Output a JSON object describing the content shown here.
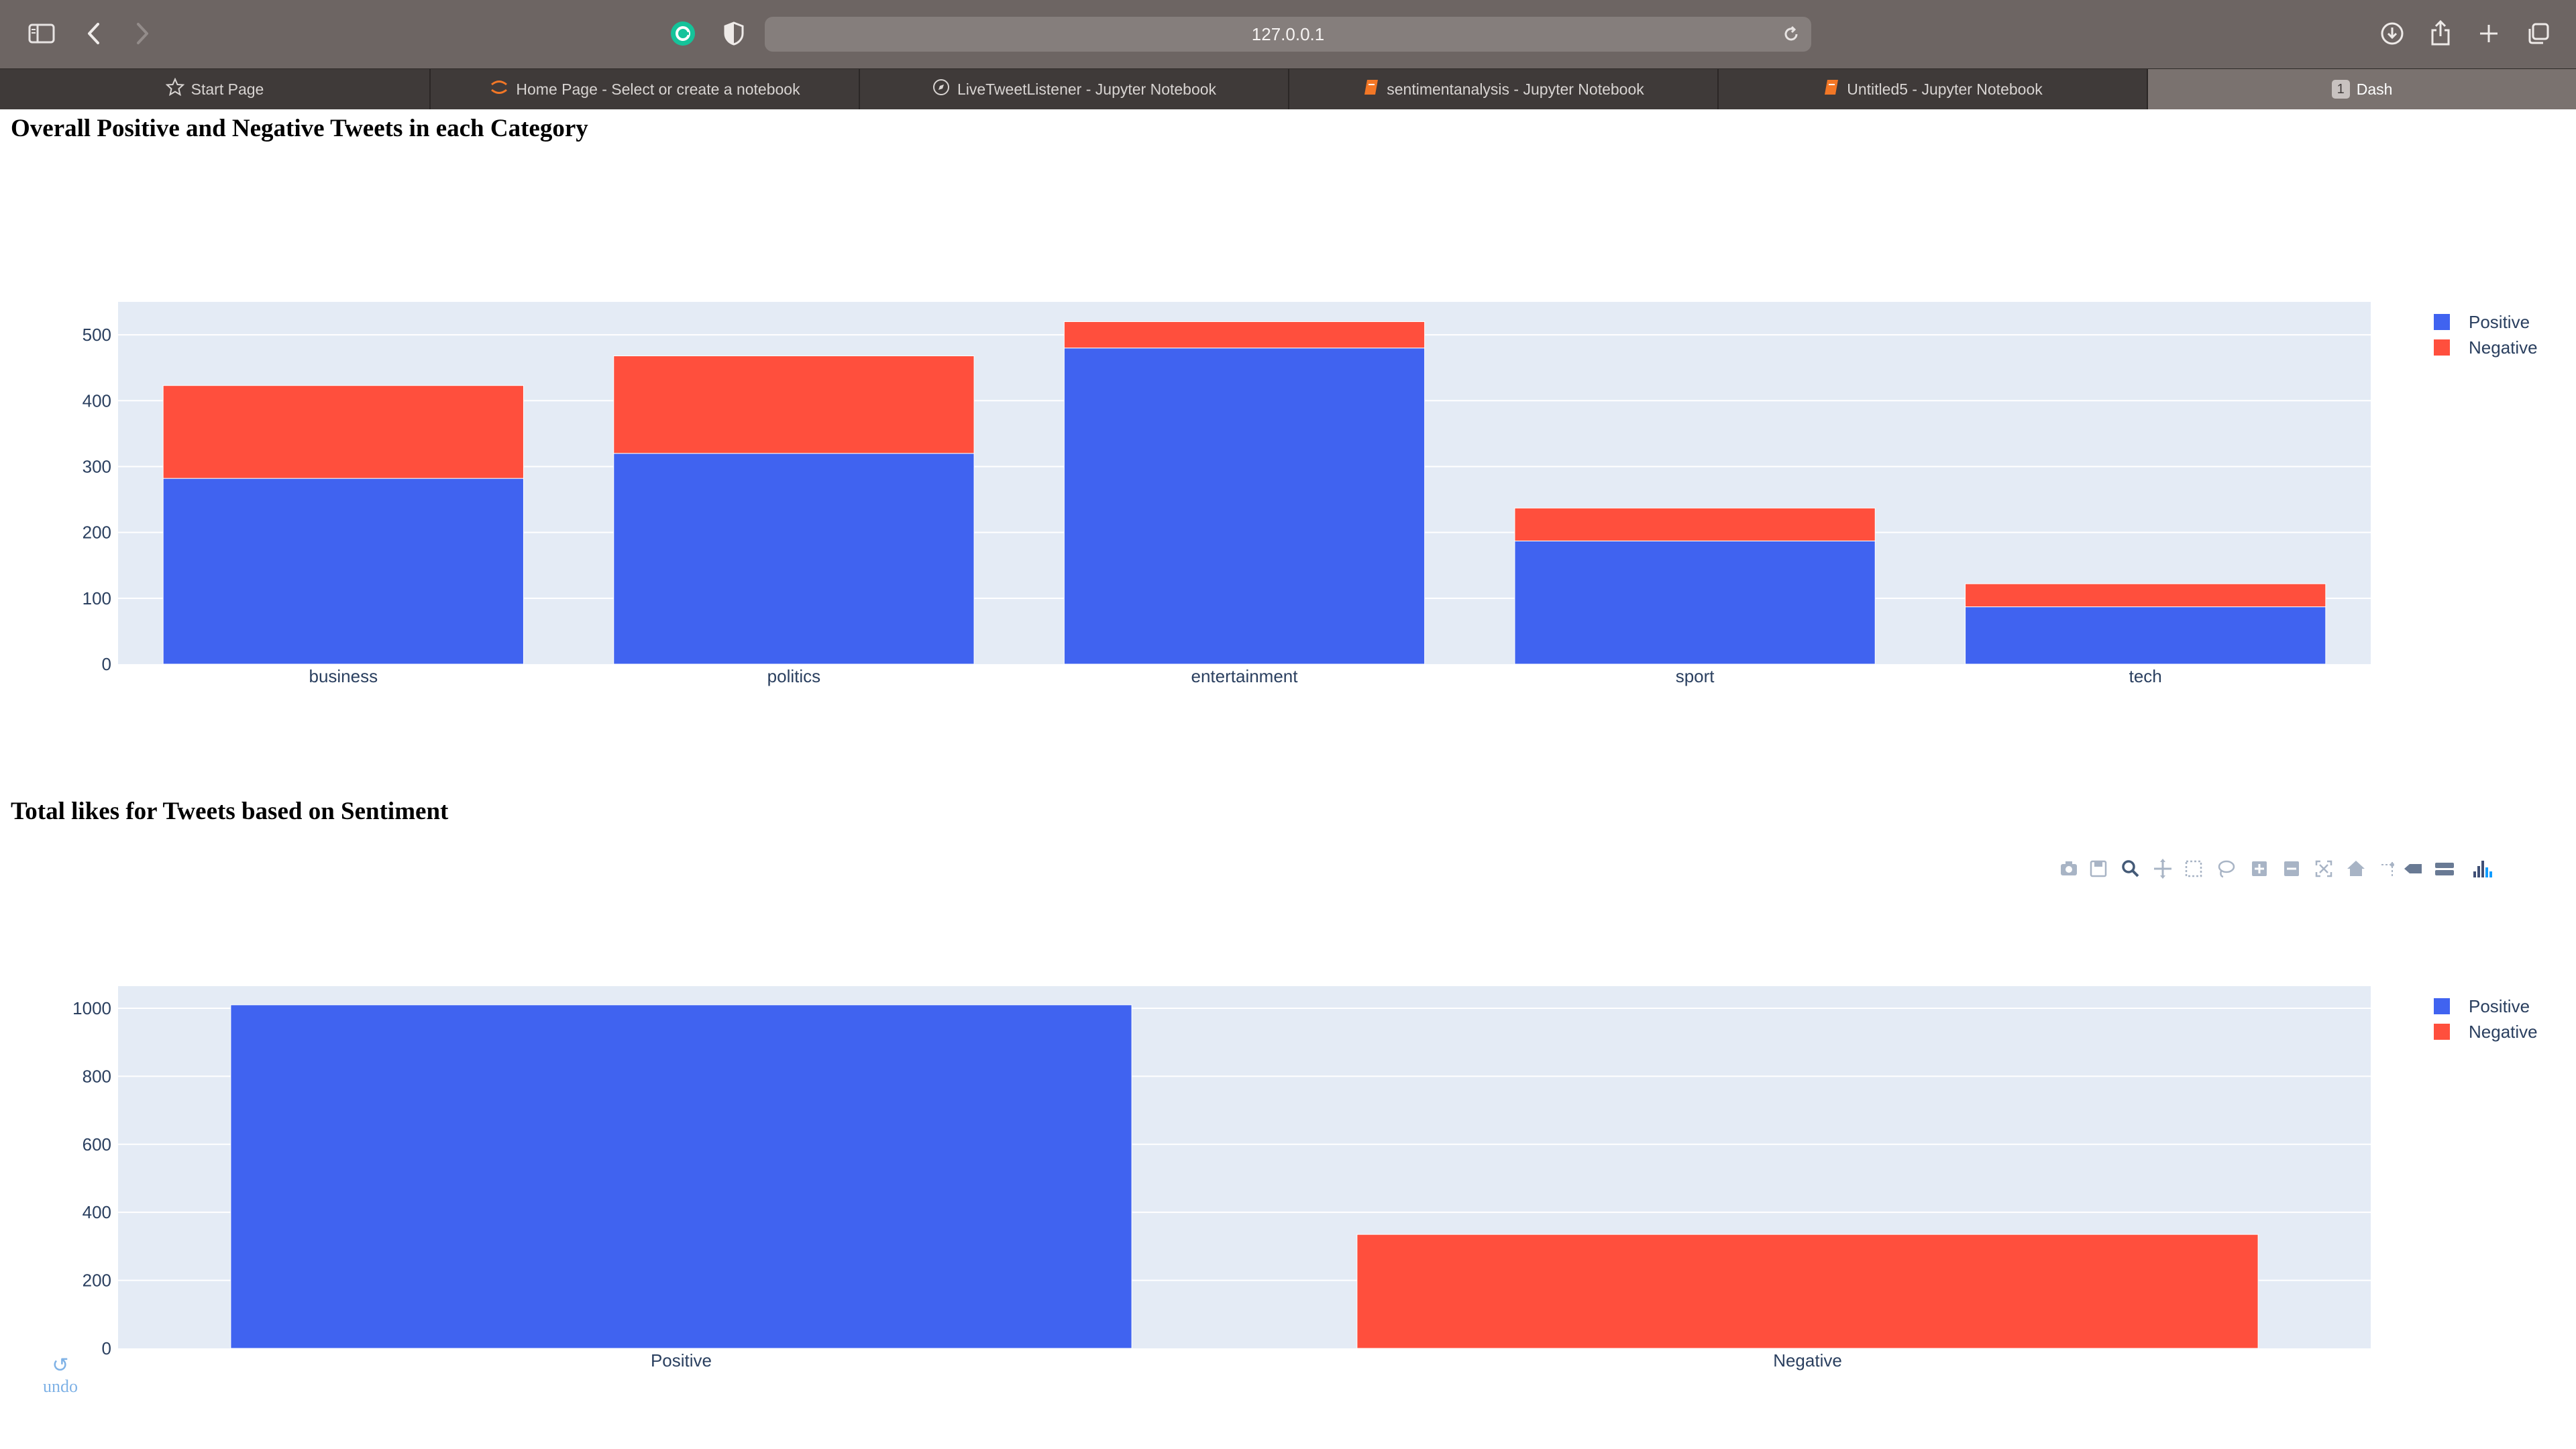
{
  "browser": {
    "url": "127.0.0.1",
    "tabs": [
      {
        "label": "Start Page",
        "icon": "star-icon"
      },
      {
        "label": "Home Page - Select or create a notebook",
        "icon": "jupyter-icon"
      },
      {
        "label": "LiveTweetListener - Jupyter Notebook",
        "icon": "compass-icon"
      },
      {
        "label": "sentimentanalysis - Jupyter Notebook",
        "icon": "notebook-icon"
      },
      {
        "label": "Untitled5 - Jupyter Notebook",
        "icon": "notebook-icon"
      },
      {
        "label": "Dash",
        "badge": "1",
        "active": true
      }
    ]
  },
  "sections": {
    "chart1_title": "Overall Positive and Negative Tweets in each Category",
    "chart2_title": "Total likes for Tweets based on Sentiment"
  },
  "undo_label": "undo",
  "colors": {
    "positive": "#4063f0",
    "negative": "#ff4f3d",
    "plot_bg": "#e4ebf5",
    "grid": "#ffffff"
  },
  "modebar_icons": [
    "camera-icon",
    "save-icon",
    "zoom-icon",
    "pan-icon",
    "box-select-icon",
    "lasso-icon",
    "zoom-in-icon",
    "zoom-out-icon",
    "autoscale-icon",
    "reset-axes-icon",
    "spike-lines-icon",
    "hover-closest-icon",
    "hover-compare-icon",
    "plotly-logo-icon"
  ],
  "chart_data": [
    {
      "type": "bar",
      "barmode": "stack",
      "categories": [
        "business",
        "politics",
        "entertainment",
        "sport",
        "tech"
      ],
      "series": [
        {
          "name": "Positive",
          "values": [
            282,
            320,
            480,
            187,
            87
          ]
        },
        {
          "name": "Negative",
          "values": [
            141,
            148,
            40,
            50,
            35
          ]
        }
      ],
      "ylim": [
        0,
        550
      ],
      "yticks": [
        0,
        100,
        200,
        300,
        400,
        500
      ],
      "grid": true,
      "legend": "top-right"
    },
    {
      "type": "bar",
      "categories": [
        "Positive",
        "Negative"
      ],
      "series": [
        {
          "name": "Positive",
          "values": [
            1010,
            null
          ]
        },
        {
          "name": "Negative",
          "values": [
            null,
            335
          ]
        }
      ],
      "ylim": [
        0,
        1065
      ],
      "yticks": [
        0,
        200,
        400,
        600,
        800,
        1000
      ],
      "grid": true,
      "legend": "top-right"
    }
  ]
}
